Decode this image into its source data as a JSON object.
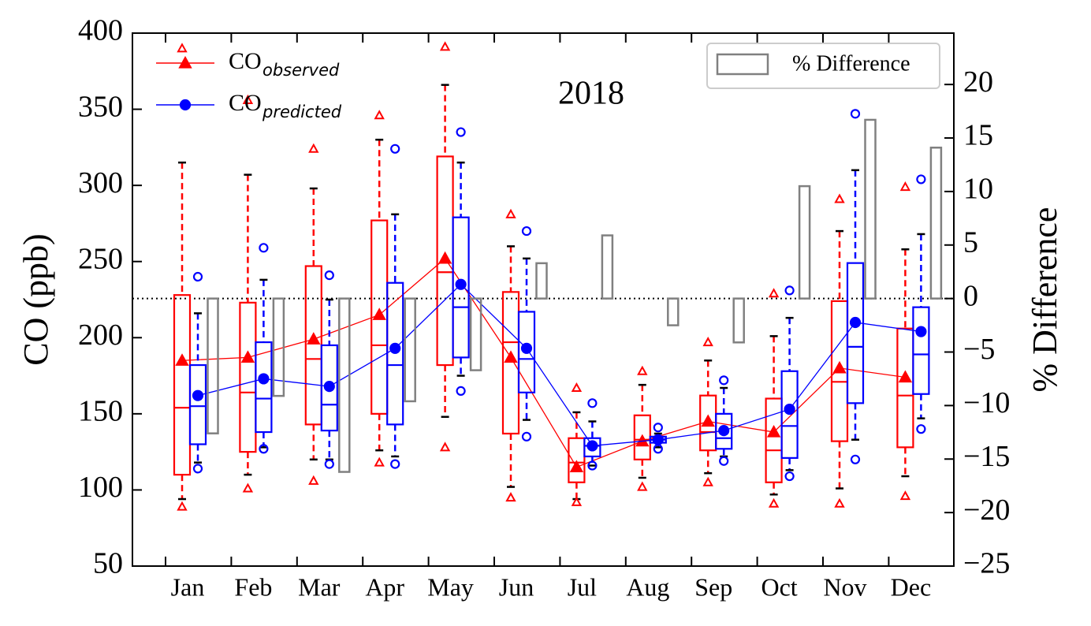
{
  "chart_data": {
    "type": "box",
    "annotation": "2018",
    "ylabel": "CO (ppb)",
    "y2label": "% Difference",
    "categories": [
      "Jan",
      "Feb",
      "Mar",
      "Apr",
      "May",
      "Jun",
      "Jul",
      "Aug",
      "Sep",
      "Oct",
      "Nov",
      "Dec"
    ],
    "ylim": [
      50,
      400
    ],
    "yticks": [
      50,
      100,
      150,
      200,
      250,
      300,
      350,
      400
    ],
    "y2lim": [
      -25,
      24.8
    ],
    "y2ticks": [
      {
        "value": -25,
        "label": "−25"
      },
      {
        "value": -20,
        "label": "−20"
      },
      {
        "value": -15,
        "label": "−15"
      },
      {
        "value": -10,
        "label": "−10"
      },
      {
        "value": -5,
        "label": "−5"
      },
      0,
      5,
      10,
      15,
      20
    ],
    "y2_reference": 0,
    "series": [
      {
        "name": "CO",
        "subscript": "observed",
        "color": "#ff0000",
        "marker": "triangle",
        "whisker_high": [
          315,
          307,
          298,
          330,
          366,
          260,
          151,
          169,
          185,
          201,
          270,
          258
        ],
        "q3": [
          228,
          223,
          247,
          277,
          319,
          230,
          134,
          149,
          162,
          160,
          224,
          206
        ],
        "median": [
          154,
          164,
          186,
          195,
          243,
          197,
          118,
          133,
          138,
          126,
          171,
          162
        ],
        "q1": [
          110,
          125,
          143,
          150,
          182,
          137,
          105,
          120,
          126,
          105,
          132,
          128
        ],
        "whisker_low": [
          94,
          110,
          120,
          126,
          148,
          102,
          94,
          108,
          111,
          97,
          101,
          109
        ],
        "outlier_high": [
          390,
          356,
          324,
          346,
          391,
          281,
          167,
          178,
          197,
          229,
          291,
          299
        ],
        "outlier_low": [
          89,
          101,
          106,
          118,
          128,
          95,
          92,
          102,
          105,
          91,
          91,
          96
        ],
        "mean": [
          185,
          187,
          199,
          215,
          252,
          187,
          115,
          132,
          145,
          138,
          180,
          174
        ]
      },
      {
        "name": "CO",
        "subscript": "predicted",
        "color": "#0000ff",
        "marker": "circle",
        "whisker_high": [
          216,
          238,
          225,
          281,
          315,
          252,
          145,
          137,
          167,
          213,
          310,
          268
        ],
        "q3": [
          182,
          197,
          195,
          236,
          279,
          217,
          134,
          135,
          150,
          178,
          249,
          220
        ],
        "median": [
          155,
          160,
          156,
          182,
          220,
          186,
          129,
          133,
          134,
          142,
          194,
          189
        ],
        "q1": [
          130,
          138,
          139,
          143,
          187,
          164,
          122,
          131,
          127,
          121,
          157,
          163
        ],
        "whisker_low": [
          118,
          128,
          120,
          122,
          175,
          146,
          116,
          128,
          122,
          113,
          133,
          147
        ],
        "outlier_high": [
          240,
          259,
          241,
          324,
          335,
          270,
          157,
          141,
          172,
          231,
          347,
          304
        ],
        "outlier_low": [
          114,
          127,
          117,
          117,
          165,
          135,
          116,
          127,
          119,
          109,
          120,
          140
        ],
        "mean": [
          162,
          173,
          168,
          193,
          235,
          193,
          129,
          133,
          139,
          153,
          210,
          204
        ]
      },
      {
        "name": "% Difference",
        "color": "#808080",
        "axis": "y2",
        "values": [
          -12.6,
          -9.1,
          -16.2,
          -9.6,
          -6.7,
          3.3,
          5.9,
          -2.5,
          -4.1,
          10.5,
          16.7,
          14.1
        ]
      }
    ]
  }
}
